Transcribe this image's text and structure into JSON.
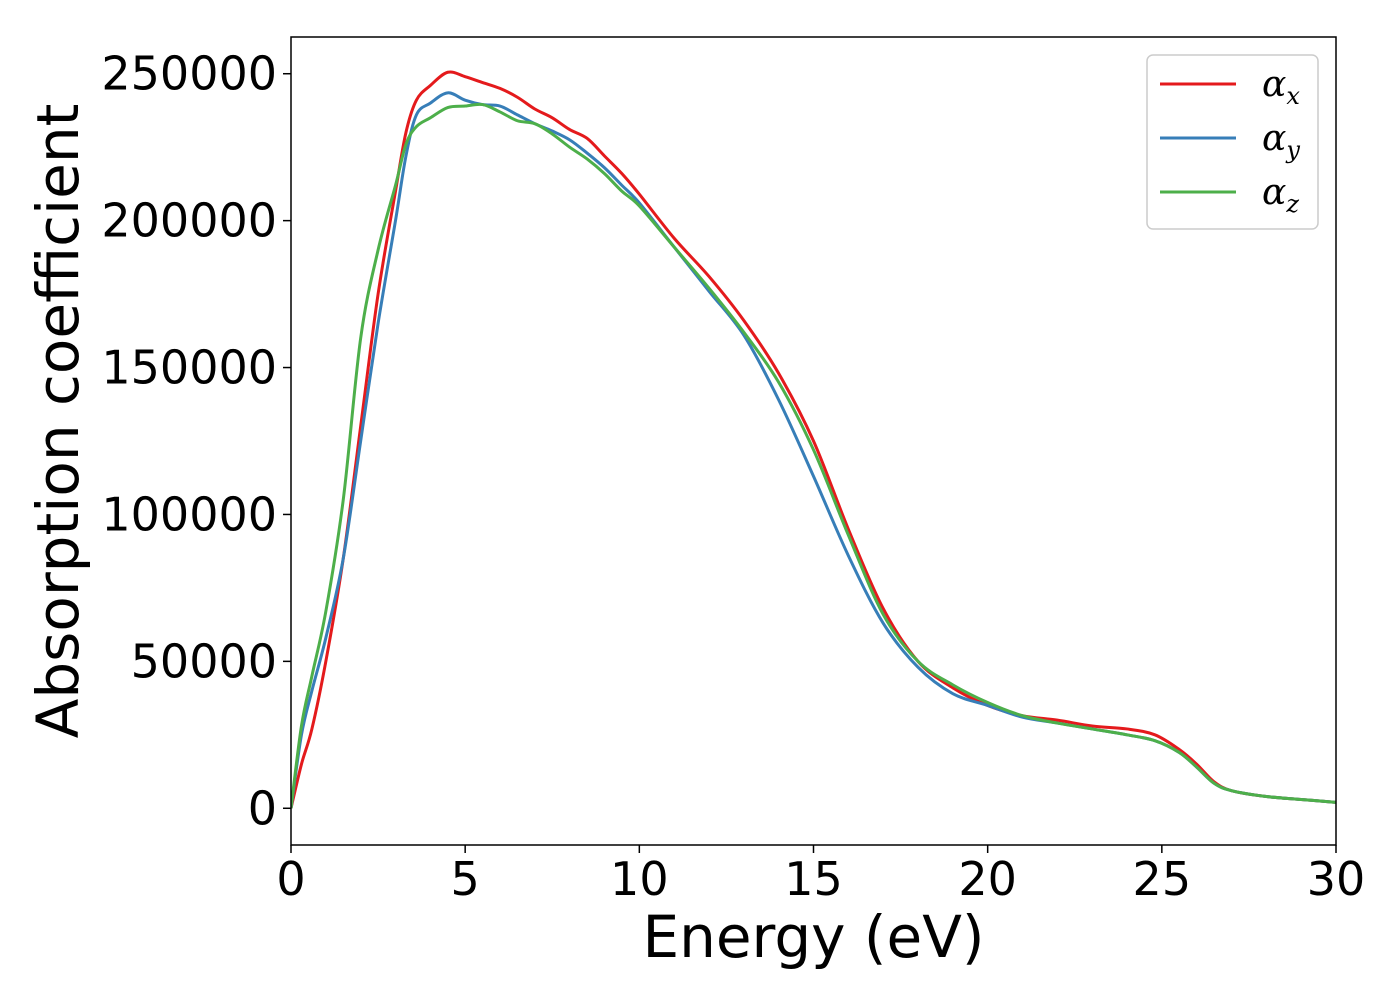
{
  "chart_data": {
    "type": "line",
    "title": "",
    "xlabel": "Energy (eV)",
    "ylabel": "Absorption coefficient",
    "xlim": [
      0,
      30
    ],
    "ylim": [
      -12500,
      262500
    ],
    "xticks": [
      0,
      5,
      10,
      15,
      20,
      25,
      30
    ],
    "xtick_labels": [
      "0",
      "5",
      "10",
      "15",
      "20",
      "25",
      "30"
    ],
    "yticks": [
      0,
      50000,
      100000,
      150000,
      200000,
      250000
    ],
    "ytick_labels": [
      "0",
      "50000",
      "100000",
      "150000",
      "200000",
      "250000"
    ],
    "grid": false,
    "legend_position": "top-right",
    "series": [
      {
        "name": "α",
        "subscript": "x",
        "color": "#e41a1c",
        "x": [
          0,
          0.3,
          0.6,
          1,
          1.5,
          2,
          2.5,
          3,
          3.3,
          3.6,
          4,
          4.5,
          5,
          5.5,
          6,
          6.5,
          7,
          7.5,
          8,
          8.5,
          9,
          9.5,
          10,
          11,
          12,
          13,
          14,
          15,
          16,
          17,
          18,
          19,
          20,
          21,
          22,
          23,
          24,
          24.8,
          25.5,
          26,
          26.5,
          27,
          28,
          29,
          30
        ],
        "y": [
          0,
          15000,
          27000,
          50000,
          85000,
          130000,
          175000,
          210000,
          230000,
          241000,
          246000,
          250500,
          249000,
          247000,
          245000,
          242000,
          238000,
          235000,
          231000,
          228000,
          222000,
          216000,
          209000,
          194000,
          181000,
          166000,
          148000,
          125000,
          95000,
          68000,
          50000,
          41000,
          35000,
          31500,
          30000,
          28000,
          27000,
          25000,
          20000,
          15000,
          9000,
          6000,
          4000,
          3000,
          2000
        ]
      },
      {
        "name": "α",
        "subscript": "y",
        "color": "#377eb8",
        "x": [
          0,
          0.3,
          0.6,
          1,
          1.5,
          2,
          2.5,
          3,
          3.3,
          3.6,
          4,
          4.5,
          5,
          5.5,
          6,
          6.5,
          7,
          7.5,
          8,
          8.5,
          9,
          9.5,
          10,
          11,
          12,
          13,
          14,
          15,
          16,
          17,
          18,
          19,
          20,
          21,
          22,
          23,
          24,
          24.8,
          25.5,
          26,
          26.5,
          27,
          28,
          29,
          30
        ],
        "y": [
          0,
          25000,
          40000,
          58000,
          85000,
          125000,
          165000,
          200000,
          222000,
          236000,
          240000,
          243500,
          241000,
          239500,
          239000,
          236000,
          233000,
          230500,
          227500,
          223000,
          218000,
          212000,
          206000,
          191000,
          176000,
          161000,
          139000,
          113000,
          86000,
          63000,
          48000,
          39000,
          35000,
          31000,
          29000,
          27000,
          25000,
          23000,
          19000,
          14000,
          8500,
          6000,
          4000,
          3000,
          2000
        ]
      },
      {
        "name": "α",
        "subscript": "z",
        "color": "#4daf4a",
        "x": [
          0,
          0.3,
          0.6,
          1,
          1.5,
          2,
          2.5,
          3,
          3.3,
          3.6,
          4,
          4.5,
          5,
          5.5,
          6,
          6.5,
          7,
          7.5,
          8,
          8.5,
          9,
          9.5,
          10,
          11,
          12,
          13,
          14,
          15,
          16,
          17,
          18,
          19,
          20,
          21,
          22,
          23,
          24,
          24.8,
          25.5,
          26,
          26.5,
          27,
          28,
          29,
          30
        ],
        "y": [
          0,
          28000,
          45000,
          67000,
          105000,
          160000,
          190000,
          212000,
          226000,
          232000,
          235000,
          238500,
          239000,
          239500,
          237000,
          234000,
          233000,
          229500,
          225000,
          221000,
          216000,
          210000,
          205000,
          191000,
          177000,
          162000,
          145000,
          122000,
          93000,
          66000,
          50000,
          42000,
          36000,
          31500,
          29000,
          27000,
          25000,
          23000,
          19000,
          14000,
          8500,
          6000,
          4000,
          3000,
          2000
        ]
      }
    ]
  }
}
